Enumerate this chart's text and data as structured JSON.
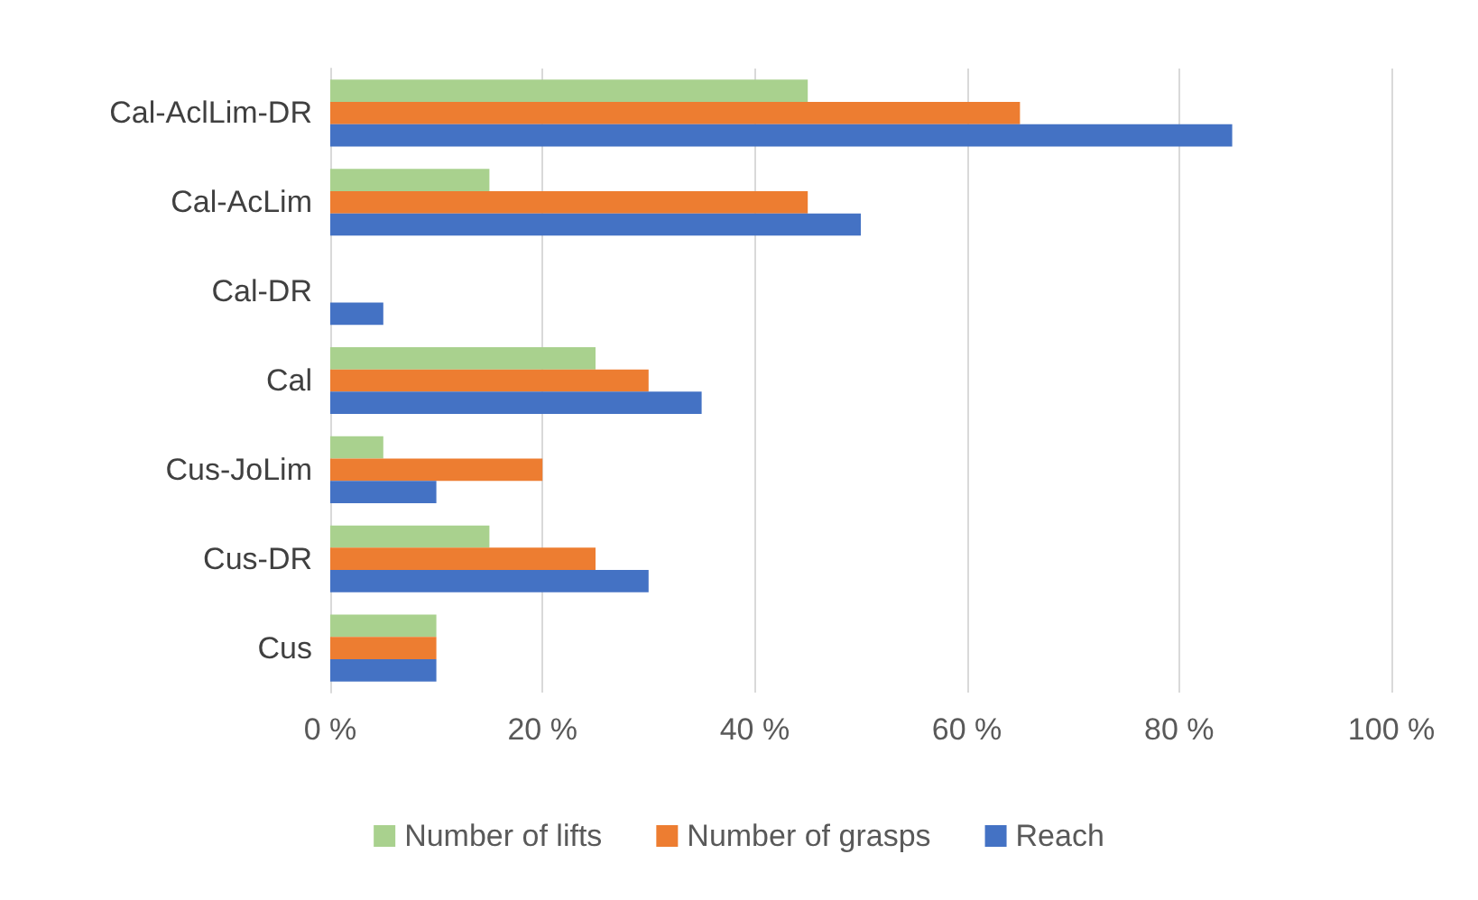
{
  "chart_data": {
    "type": "bar",
    "orientation": "horizontal",
    "categories": [
      "Cal-AclLim-DR",
      "Cal-AcLim",
      "Cal-DR",
      "Cal",
      "Cus-JoLim",
      "Cus-DR",
      "Cus"
    ],
    "series": [
      {
        "name": "Number of lifts",
        "color": "#a9d18e",
        "values": [
          45,
          15,
          0,
          25,
          5,
          15,
          10
        ]
      },
      {
        "name": "Number of grasps",
        "color": "#ed7d31",
        "values": [
          65,
          45,
          0,
          30,
          20,
          25,
          10
        ]
      },
      {
        "name": "Reach",
        "color": "#4472c4",
        "values": [
          85,
          50,
          5,
          35,
          10,
          30,
          10
        ]
      }
    ],
    "xlim": [
      0,
      100
    ],
    "xticks": [
      {
        "value": 0,
        "label": "0 %"
      },
      {
        "value": 20,
        "label": "20 %"
      },
      {
        "value": 40,
        "label": "40 %"
      },
      {
        "value": 60,
        "label": "60 %"
      },
      {
        "value": 80,
        "label": "80 %"
      },
      {
        "value": 100,
        "label": "100 %"
      }
    ],
    "grid": "x",
    "legend": "bottom"
  }
}
